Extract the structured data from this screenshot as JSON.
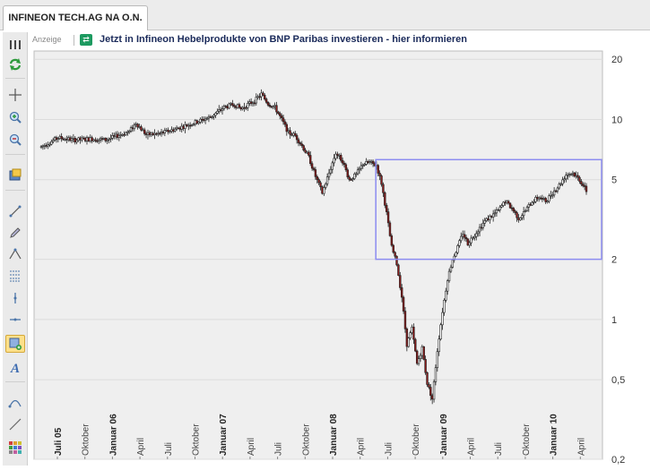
{
  "tab": {
    "title": "INFINEON TECH.AG NA O.N."
  },
  "ad": {
    "label": "Anzeige",
    "text": "Jetzt in Infineon Hebelprodukte von BNP Paribas investieren - hier informieren"
  },
  "toolbar": {
    "icons": [
      "columns-icon",
      "refresh-icon",
      "crosshair-icon",
      "zoom-in-icon",
      "zoom-out-icon",
      "export-icon",
      "line-tool-icon",
      "pencil-icon",
      "triangle-tool-icon",
      "fibonacci-icon",
      "vertical-line-icon",
      "horizontal-line-icon",
      "rectangle-tool-icon",
      "text-tool-icon",
      "arc-tool-icon",
      "trendline-icon",
      "color-grid-icon"
    ],
    "active": "rectangle-tool-icon"
  },
  "colors": {
    "grid": "#dcdcdc",
    "plot_bg": "#efefef",
    "up": "#ffffff",
    "down": "#8b1a1a",
    "rect": "#8c8cf0"
  },
  "chart_data": {
    "type": "candlestick",
    "y_scale": "log",
    "ylim": [
      0.2,
      22
    ],
    "yticks": [
      {
        "v": 20,
        "t": "20"
      },
      {
        "v": 10,
        "t": "10"
      },
      {
        "v": 5,
        "t": "5"
      },
      {
        "v": 2,
        "t": "2"
      },
      {
        "v": 1,
        "t": "1"
      },
      {
        "v": 0.5,
        "t": "0,5"
      },
      {
        "v": 0.2,
        "t": "0,2"
      }
    ],
    "xticks": [
      {
        "t": "Juli 05",
        "bold": true
      },
      {
        "t": "Oktober",
        "bold": false
      },
      {
        "t": "Januar 06",
        "bold": true
      },
      {
        "t": "April",
        "bold": false
      },
      {
        "t": "Juli",
        "bold": false
      },
      {
        "t": "Oktober",
        "bold": false
      },
      {
        "t": "Januar 07",
        "bold": true
      },
      {
        "t": "April",
        "bold": false
      },
      {
        "t": "Juli",
        "bold": false
      },
      {
        "t": "Oktober",
        "bold": false
      },
      {
        "t": "Januar 08",
        "bold": true
      },
      {
        "t": "April",
        "bold": false
      },
      {
        "t": "Juli",
        "bold": false
      },
      {
        "t": "Oktober",
        "bold": false
      },
      {
        "t": "Januar 09",
        "bold": true
      },
      {
        "t": "April",
        "bold": false
      },
      {
        "t": "Juli",
        "bold": false
      },
      {
        "t": "Oktober",
        "bold": false
      },
      {
        "t": "Januar 10",
        "bold": true
      },
      {
        "t": "April",
        "bold": false
      }
    ],
    "price_path": [
      [
        0,
        7.3
      ],
      [
        10,
        8.1
      ],
      [
        20,
        7.9
      ],
      [
        30,
        8.0
      ],
      [
        38,
        7.9
      ],
      [
        45,
        8.3
      ],
      [
        52,
        8.7
      ],
      [
        56,
        9.6
      ],
      [
        62,
        8.4
      ],
      [
        70,
        8.5
      ],
      [
        80,
        9.0
      ],
      [
        90,
        9.6
      ],
      [
        100,
        10.3
      ],
      [
        108,
        11.5
      ],
      [
        114,
        11.9
      ],
      [
        118,
        11.3
      ],
      [
        122,
        11.9
      ],
      [
        126,
        12.4
      ],
      [
        130,
        13.4
      ],
      [
        134,
        12.0
      ],
      [
        138,
        11.5
      ],
      [
        142,
        10.0
      ],
      [
        146,
        8.6
      ],
      [
        150,
        8.3
      ],
      [
        154,
        7.4
      ],
      [
        158,
        6.5
      ],
      [
        162,
        5.2
      ],
      [
        166,
        4.3
      ],
      [
        170,
        5.4
      ],
      [
        174,
        6.8
      ],
      [
        178,
        6.2
      ],
      [
        182,
        5.0
      ],
      [
        186,
        5.3
      ],
      [
        190,
        6.0
      ],
      [
        194,
        6.1
      ],
      [
        198,
        5.9
      ],
      [
        201,
        4.8
      ],
      [
        204,
        3.4
      ],
      [
        207,
        2.3
      ],
      [
        210,
        1.9
      ],
      [
        213,
        1.3
      ],
      [
        216,
        0.75
      ],
      [
        219,
        0.9
      ],
      [
        222,
        0.6
      ],
      [
        225,
        0.72
      ],
      [
        228,
        0.48
      ],
      [
        231,
        0.4
      ],
      [
        234,
        0.7
      ],
      [
        237,
        1.1
      ],
      [
        240,
        1.6
      ],
      [
        243,
        2.0
      ],
      [
        246,
        2.3
      ],
      [
        249,
        2.7
      ],
      [
        252,
        2.4
      ],
      [
        255,
        2.6
      ],
      [
        258,
        2.8
      ],
      [
        262,
        3.1
      ],
      [
        266,
        3.3
      ],
      [
        270,
        3.5
      ],
      [
        274,
        3.9
      ],
      [
        278,
        3.6
      ],
      [
        282,
        3.2
      ],
      [
        286,
        3.5
      ],
      [
        290,
        3.9
      ],
      [
        294,
        4.1
      ],
      [
        298,
        3.9
      ],
      [
        302,
        4.3
      ],
      [
        306,
        4.7
      ],
      [
        310,
        5.3
      ],
      [
        314,
        5.4
      ],
      [
        318,
        5.0
      ],
      [
        322,
        4.4
      ]
    ],
    "rectangle": {
      "y_low": 2.0,
      "y_high": 6.3
    }
  }
}
